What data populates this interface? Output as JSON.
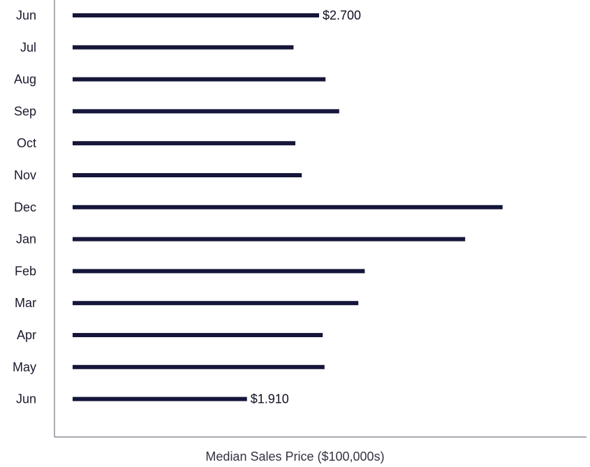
{
  "chart_data": {
    "type": "bar",
    "orientation": "horizontal",
    "categories": [
      "Jun",
      "Jul",
      "Aug",
      "Sep",
      "Oct",
      "Nov",
      "Dec",
      "Jan",
      "Feb",
      "Mar",
      "Apr",
      "May",
      "Jun"
    ],
    "values": [
      2.7,
      2.42,
      2.77,
      2.92,
      2.44,
      2.51,
      4.71,
      4.3,
      3.2,
      3.13,
      2.74,
      2.76,
      1.91
    ],
    "data_labels": [
      {
        "index": 0,
        "text": "$2.700"
      },
      {
        "index": 12,
        "text": "$1.910"
      }
    ],
    "xlabel": "Median Sales Price ($100,000s)",
    "ylabel": "",
    "xlim": [
      0,
      5.6
    ],
    "grid": false,
    "bar_color": "#15163a"
  }
}
